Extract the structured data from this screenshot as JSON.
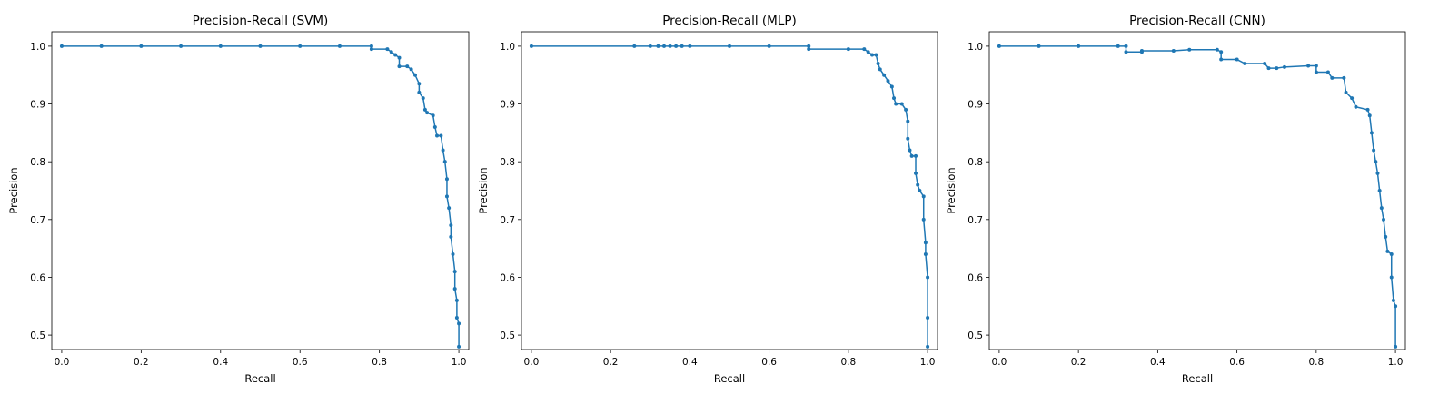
{
  "style": {
    "line_color": "#1f77b4",
    "background": "#ffffff",
    "axes_color": "#000000"
  },
  "chart_data": [
    {
      "type": "line",
      "title": "Precision-Recall (SVM)",
      "xlabel": "Recall",
      "ylabel": "Precision",
      "xlim": [
        -0.025,
        1.025
      ],
      "ylim": [
        0.475,
        1.025
      ],
      "xticks": [
        0.0,
        0.2,
        0.4,
        0.6,
        0.8,
        1.0
      ],
      "xtick_labels": [
        "0.0",
        "0.2",
        "0.4",
        "0.6",
        "0.8",
        "1.0"
      ],
      "yticks": [
        0.5,
        0.6,
        0.7,
        0.8,
        0.9,
        1.0
      ],
      "ytick_labels": [
        "0.5",
        "0.6",
        "0.7",
        "0.8",
        "0.9",
        "1.0"
      ],
      "grid": false,
      "series": [
        {
          "color": "#1f77b4",
          "marker": "o",
          "points": [
            [
              0.0,
              1.0
            ],
            [
              0.1,
              1.0
            ],
            [
              0.2,
              1.0
            ],
            [
              0.3,
              1.0
            ],
            [
              0.4,
              1.0
            ],
            [
              0.5,
              1.0
            ],
            [
              0.6,
              1.0
            ],
            [
              0.7,
              1.0
            ],
            [
              0.78,
              1.0
            ],
            [
              0.78,
              0.995
            ],
            [
              0.82,
              0.995
            ],
            [
              0.83,
              0.99
            ],
            [
              0.84,
              0.985
            ],
            [
              0.85,
              0.98
            ],
            [
              0.85,
              0.965
            ],
            [
              0.87,
              0.965
            ],
            [
              0.88,
              0.96
            ],
            [
              0.89,
              0.95
            ],
            [
              0.9,
              0.935
            ],
            [
              0.9,
              0.92
            ],
            [
              0.91,
              0.91
            ],
            [
              0.915,
              0.89
            ],
            [
              0.92,
              0.885
            ],
            [
              0.935,
              0.88
            ],
            [
              0.94,
              0.86
            ],
            [
              0.945,
              0.845
            ],
            [
              0.955,
              0.845
            ],
            [
              0.96,
              0.82
            ],
            [
              0.965,
              0.8
            ],
            [
              0.97,
              0.77
            ],
            [
              0.97,
              0.74
            ],
            [
              0.975,
              0.72
            ],
            [
              0.98,
              0.69
            ],
            [
              0.98,
              0.67
            ],
            [
              0.985,
              0.64
            ],
            [
              0.99,
              0.61
            ],
            [
              0.99,
              0.58
            ],
            [
              0.995,
              0.56
            ],
            [
              0.995,
              0.53
            ],
            [
              1.0,
              0.52
            ],
            [
              1.0,
              0.48
            ]
          ]
        }
      ]
    },
    {
      "type": "line",
      "title": "Precision-Recall (MLP)",
      "xlabel": "Recall",
      "ylabel": "Precision",
      "xlim": [
        -0.025,
        1.025
      ],
      "ylim": [
        0.475,
        1.025
      ],
      "xticks": [
        0.0,
        0.2,
        0.4,
        0.6,
        0.8,
        1.0
      ],
      "xtick_labels": [
        "0.0",
        "0.2",
        "0.4",
        "0.6",
        "0.8",
        "1.0"
      ],
      "yticks": [
        0.5,
        0.6,
        0.7,
        0.8,
        0.9,
        1.0
      ],
      "ytick_labels": [
        "0.5",
        "0.6",
        "0.7",
        "0.8",
        "0.9",
        "1.0"
      ],
      "grid": false,
      "series": [
        {
          "color": "#1f77b4",
          "marker": "o",
          "points": [
            [
              0.0,
              1.0
            ],
            [
              0.26,
              1.0
            ],
            [
              0.3,
              1.0
            ],
            [
              0.32,
              1.0
            ],
            [
              0.335,
              1.0
            ],
            [
              0.35,
              1.0
            ],
            [
              0.365,
              1.0
            ],
            [
              0.38,
              1.0
            ],
            [
              0.4,
              1.0
            ],
            [
              0.5,
              1.0
            ],
            [
              0.6,
              1.0
            ],
            [
              0.7,
              1.0
            ],
            [
              0.7,
              0.995
            ],
            [
              0.8,
              0.995
            ],
            [
              0.84,
              0.995
            ],
            [
              0.85,
              0.99
            ],
            [
              0.86,
              0.985
            ],
            [
              0.87,
              0.985
            ],
            [
              0.875,
              0.97
            ],
            [
              0.88,
              0.96
            ],
            [
              0.89,
              0.95
            ],
            [
              0.9,
              0.94
            ],
            [
              0.91,
              0.93
            ],
            [
              0.915,
              0.91
            ],
            [
              0.92,
              0.9
            ],
            [
              0.935,
              0.9
            ],
            [
              0.945,
              0.89
            ],
            [
              0.95,
              0.87
            ],
            [
              0.95,
              0.84
            ],
            [
              0.955,
              0.82
            ],
            [
              0.96,
              0.81
            ],
            [
              0.97,
              0.81
            ],
            [
              0.97,
              0.78
            ],
            [
              0.975,
              0.76
            ],
            [
              0.98,
              0.75
            ],
            [
              0.99,
              0.74
            ],
            [
              0.99,
              0.7
            ],
            [
              0.995,
              0.66
            ],
            [
              0.995,
              0.64
            ],
            [
              1.0,
              0.6
            ],
            [
              1.0,
              0.53
            ],
            [
              1.0,
              0.48
            ]
          ]
        }
      ]
    },
    {
      "type": "line",
      "title": "Precision-Recall (CNN)",
      "xlabel": "Recall",
      "ylabel": "Precision",
      "xlim": [
        -0.025,
        1.025
      ],
      "ylim": [
        0.475,
        1.025
      ],
      "xticks": [
        0.0,
        0.2,
        0.4,
        0.6,
        0.8,
        1.0
      ],
      "xtick_labels": [
        "0.0",
        "0.2",
        "0.4",
        "0.6",
        "0.8",
        "1.0"
      ],
      "yticks": [
        0.5,
        0.6,
        0.7,
        0.8,
        0.9,
        1.0
      ],
      "ytick_labels": [
        "0.5",
        "0.6",
        "0.7",
        "0.8",
        "0.9",
        "1.0"
      ],
      "grid": false,
      "series": [
        {
          "color": "#1f77b4",
          "marker": "o",
          "points": [
            [
              0.0,
              1.0
            ],
            [
              0.1,
              1.0
            ],
            [
              0.2,
              1.0
            ],
            [
              0.3,
              1.0
            ],
            [
              0.32,
              1.0
            ],
            [
              0.32,
              0.99
            ],
            [
              0.36,
              0.99
            ],
            [
              0.36,
              0.992
            ],
            [
              0.44,
              0.992
            ],
            [
              0.48,
              0.994
            ],
            [
              0.55,
              0.994
            ],
            [
              0.56,
              0.99
            ],
            [
              0.56,
              0.977
            ],
            [
              0.6,
              0.977
            ],
            [
              0.62,
              0.97
            ],
            [
              0.67,
              0.97
            ],
            [
              0.68,
              0.962
            ],
            [
              0.7,
              0.962
            ],
            [
              0.72,
              0.964
            ],
            [
              0.78,
              0.966
            ],
            [
              0.8,
              0.966
            ],
            [
              0.8,
              0.955
            ],
            [
              0.83,
              0.955
            ],
            [
              0.84,
              0.945
            ],
            [
              0.87,
              0.945
            ],
            [
              0.875,
              0.92
            ],
            [
              0.89,
              0.91
            ],
            [
              0.9,
              0.895
            ],
            [
              0.93,
              0.89
            ],
            [
              0.935,
              0.88
            ],
            [
              0.94,
              0.85
            ],
            [
              0.945,
              0.82
            ],
            [
              0.95,
              0.8
            ],
            [
              0.955,
              0.78
            ],
            [
              0.96,
              0.75
            ],
            [
              0.965,
              0.72
            ],
            [
              0.97,
              0.7
            ],
            [
              0.975,
              0.67
            ],
            [
              0.98,
              0.645
            ],
            [
              0.99,
              0.64
            ],
            [
              0.99,
              0.6
            ],
            [
              0.995,
              0.56
            ],
            [
              1.0,
              0.55
            ],
            [
              1.0,
              0.48
            ]
          ]
        }
      ]
    }
  ]
}
